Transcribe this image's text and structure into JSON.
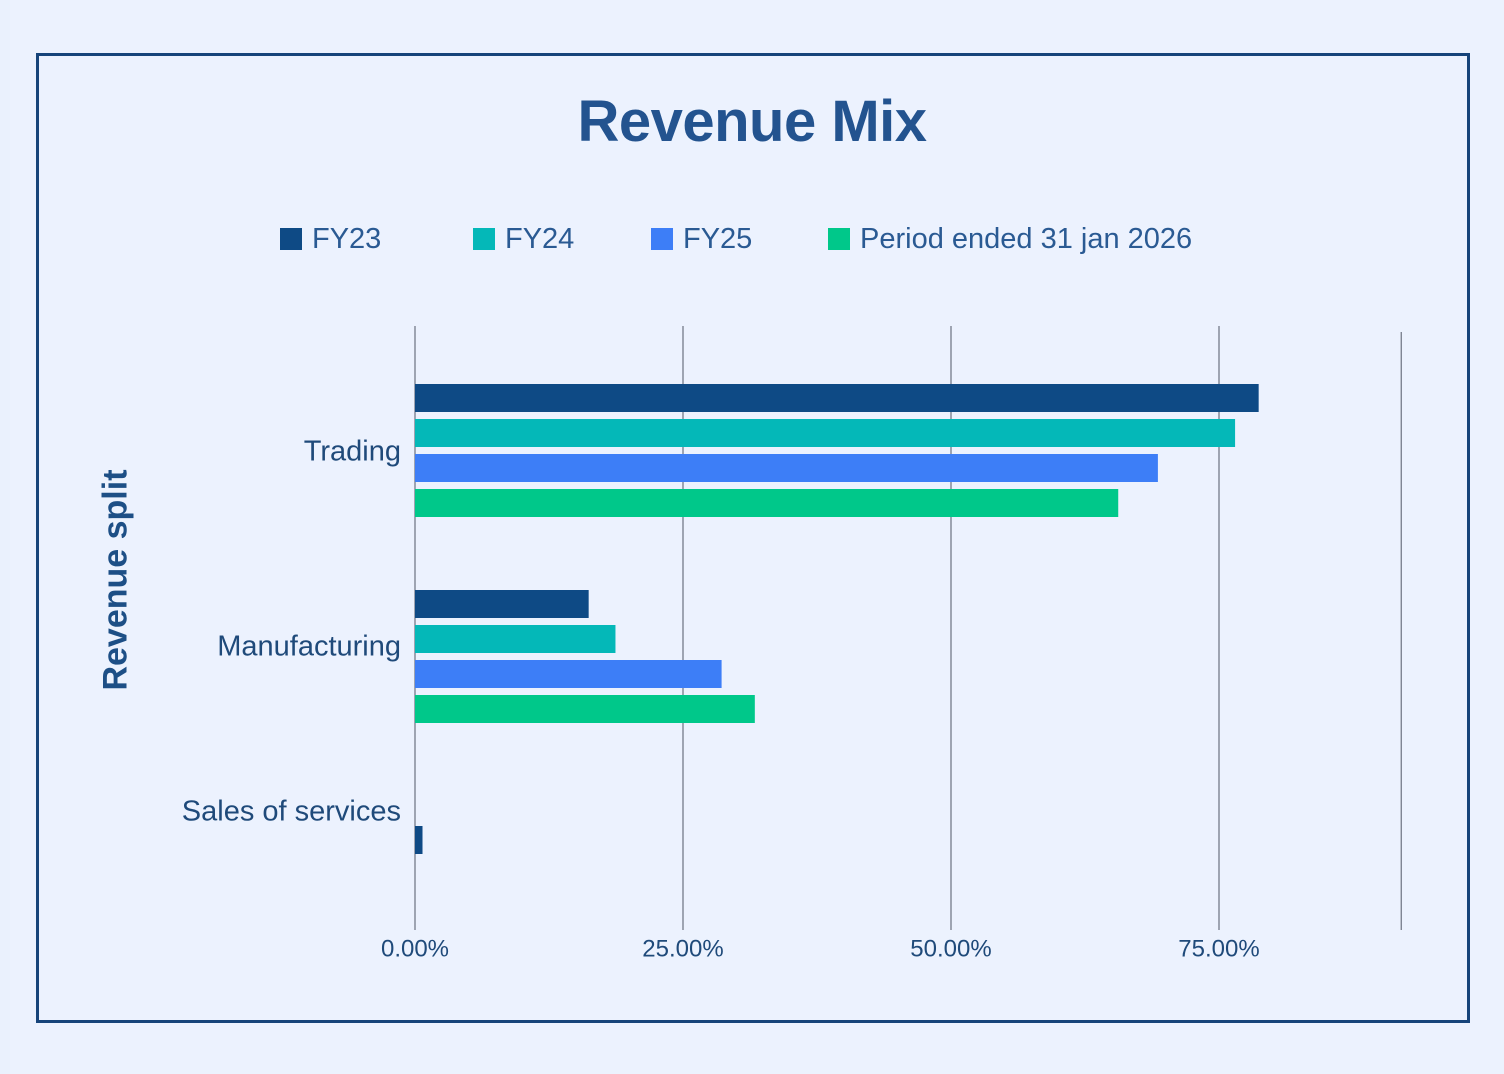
{
  "chart_data": {
    "type": "bar",
    "orientation": "horizontal",
    "title": "Revenue Mix",
    "xlabel": "",
    "ylabel": "Revenue split",
    "xlim": [
      0,
      0.92
    ],
    "x_ticks": [
      {
        "value": 0,
        "label": "0.00%"
      },
      {
        "value": 0.25,
        "label": "25.00%"
      },
      {
        "value": 0.5,
        "label": "50.00%"
      },
      {
        "value": 0.75,
        "label": "75.00%"
      }
    ],
    "grid": true,
    "legend_position": "top",
    "categories": [
      "Trading",
      "Manufacturing",
      "Sales of services"
    ],
    "series": [
      {
        "name": "FY23",
        "color": "#0e4a85",
        "values": [
          0.787,
          0.162,
          0.007
        ]
      },
      {
        "name": "FY24",
        "color": "#04b8b8",
        "values": [
          0.765,
          0.187,
          0
        ]
      },
      {
        "name": "FY25",
        "color": "#3d7ef7",
        "values": [
          0.693,
          0.286,
          0
        ]
      },
      {
        "name": "Period ended 31 jan 2026",
        "color": "#00c88a",
        "values": [
          0.656,
          0.317,
          0
        ]
      }
    ]
  }
}
